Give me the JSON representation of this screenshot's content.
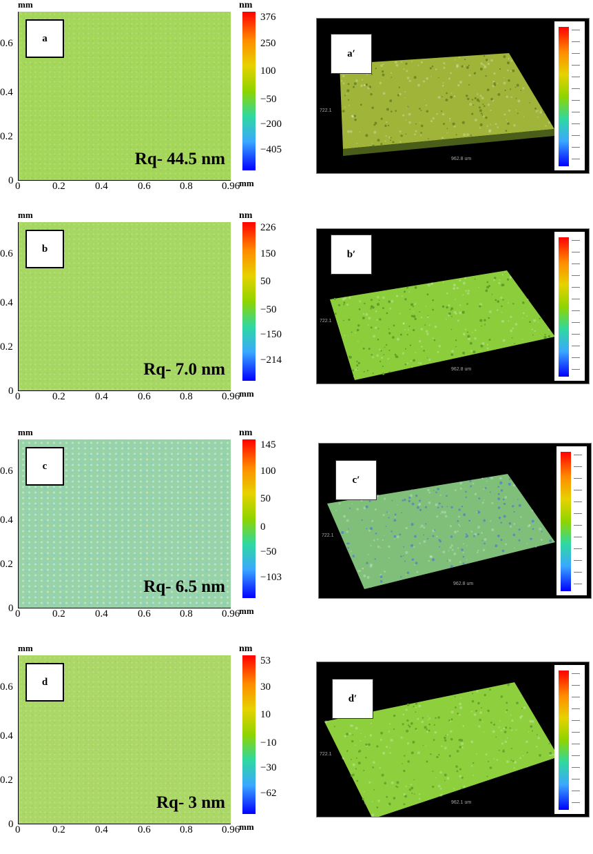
{
  "rows": [
    {
      "id": "a",
      "label": "a",
      "label_3d": "a′",
      "rq": "Rq- 44.5 nm",
      "cbar_ticks": [
        "376",
        "250",
        "100",
        "−50",
        "−200",
        "−405"
      ],
      "map_color": "#a4d65a",
      "tex": "tex",
      "surface_color": "#a0b43a",
      "surface_dark": "#6e8a24"
    },
    {
      "id": "b",
      "label": "b",
      "label_3d": "b′",
      "rq": "Rq- 7.0 nm",
      "cbar_ticks": [
        "226",
        "150",
        "50",
        "−50",
        "−150",
        "−214"
      ],
      "map_color": "#a6d763",
      "tex": "tex",
      "surface_color": "#8ccd3c",
      "surface_dark": "#5fa028"
    },
    {
      "id": "c",
      "label": "c",
      "label_3d": "c′",
      "rq": "Rq- 6.5 nm",
      "cbar_ticks": [
        "145",
        "100",
        "50",
        "0",
        "−50",
        "−103"
      ],
      "map_color": "#97d3a6",
      "tex": "tex2",
      "surface_color": "#7fbf7a",
      "surface_dark": "#5a8fb8"
    },
    {
      "id": "d",
      "label": "d",
      "label_3d": "d′",
      "rq": "Rq- 3 nm",
      "cbar_ticks": [
        "53",
        "30",
        "10",
        "−10",
        "−30",
        "−62"
      ],
      "map_color": "#abd766",
      "tex": "tex",
      "surface_color": "#8ecf3e",
      "surface_dark": "#66a62c"
    }
  ],
  "axis_unit": "mm",
  "cbar_unit": "nm",
  "x_ticks": [
    "0",
    "0.2",
    "0.4",
    "0.6",
    "0.8",
    "0.96"
  ],
  "y_ticks": [
    "0",
    "0.2",
    "0.4",
    "0.6"
  ],
  "axis_3d_y": "722.1",
  "axis_3d_x": [
    "962.8 um",
    "962.8 um",
    "962.8 um",
    "962.1 um"
  ],
  "colors": {
    "background": "#ffffff",
    "panel_bg": "#000000"
  }
}
